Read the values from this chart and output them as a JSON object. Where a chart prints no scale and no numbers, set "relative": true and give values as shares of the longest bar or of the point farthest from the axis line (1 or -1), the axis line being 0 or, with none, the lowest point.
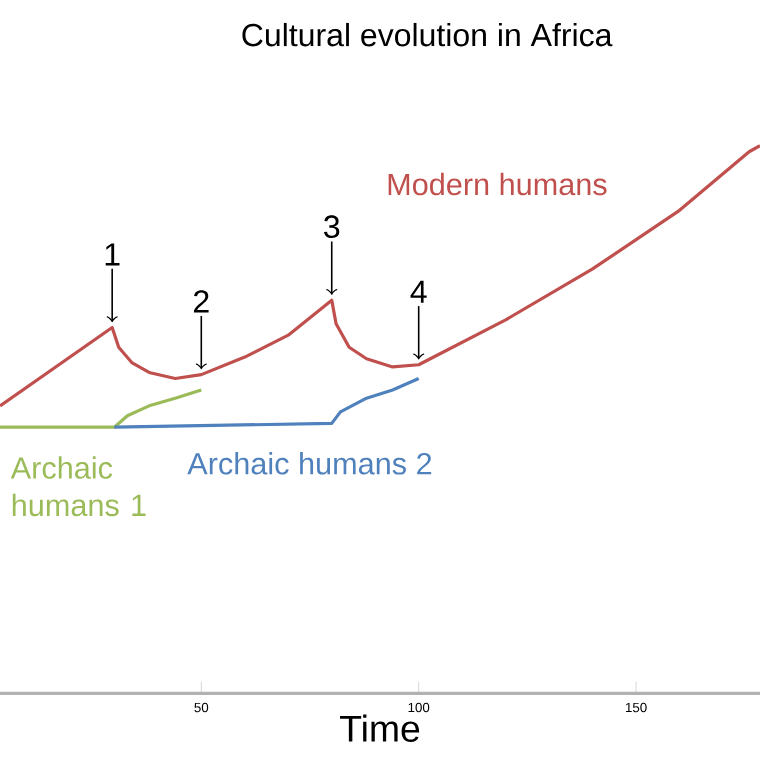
{
  "chart_data": {
    "type": "line",
    "title": "Cultural evolution in Africa",
    "xlabel": "Time",
    "relative": true,
    "xlim": [
      3.7,
      178.5
    ],
    "xticks": [
      50,
      100,
      150
    ],
    "grid": false,
    "legend": false,
    "series": [
      {
        "name": "Modern humans",
        "color": "#c0504d",
        "x": [
          3.7,
          29.5,
          31,
          34,
          38,
          44,
          50,
          60,
          70,
          80,
          81,
          84,
          88,
          94,
          100,
          120,
          140,
          160,
          176,
          178.5
        ],
        "values": [
          0.525,
          0.668,
          0.632,
          0.604,
          0.586,
          0.575,
          0.582,
          0.614,
          0.654,
          0.718,
          0.675,
          0.632,
          0.611,
          0.596,
          0.6,
          0.682,
          0.775,
          0.882,
          0.989,
          1
        ]
      },
      {
        "name": "Archaic humans 1",
        "color": "#9bbb59",
        "x": [
          3.7,
          30,
          33,
          38,
          44,
          50
        ],
        "values": [
          0.486,
          0.486,
          0.507,
          0.525,
          0.539,
          0.554
        ]
      },
      {
        "name": "Archaic humans 2",
        "color": "#4f81bd",
        "x": [
          30,
          80,
          82,
          88,
          94,
          100
        ],
        "values": [
          0.486,
          0.493,
          0.514,
          0.539,
          0.554,
          0.575
        ]
      }
    ],
    "annotations": [
      {
        "text": "1",
        "x": 29.5,
        "y": 0.668
      },
      {
        "text": "2",
        "x": 50,
        "y": 0.582
      },
      {
        "text": "3",
        "x": 80,
        "y": 0.718
      },
      {
        "text": "4",
        "x": 100,
        "y": 0.6
      }
    ]
  }
}
